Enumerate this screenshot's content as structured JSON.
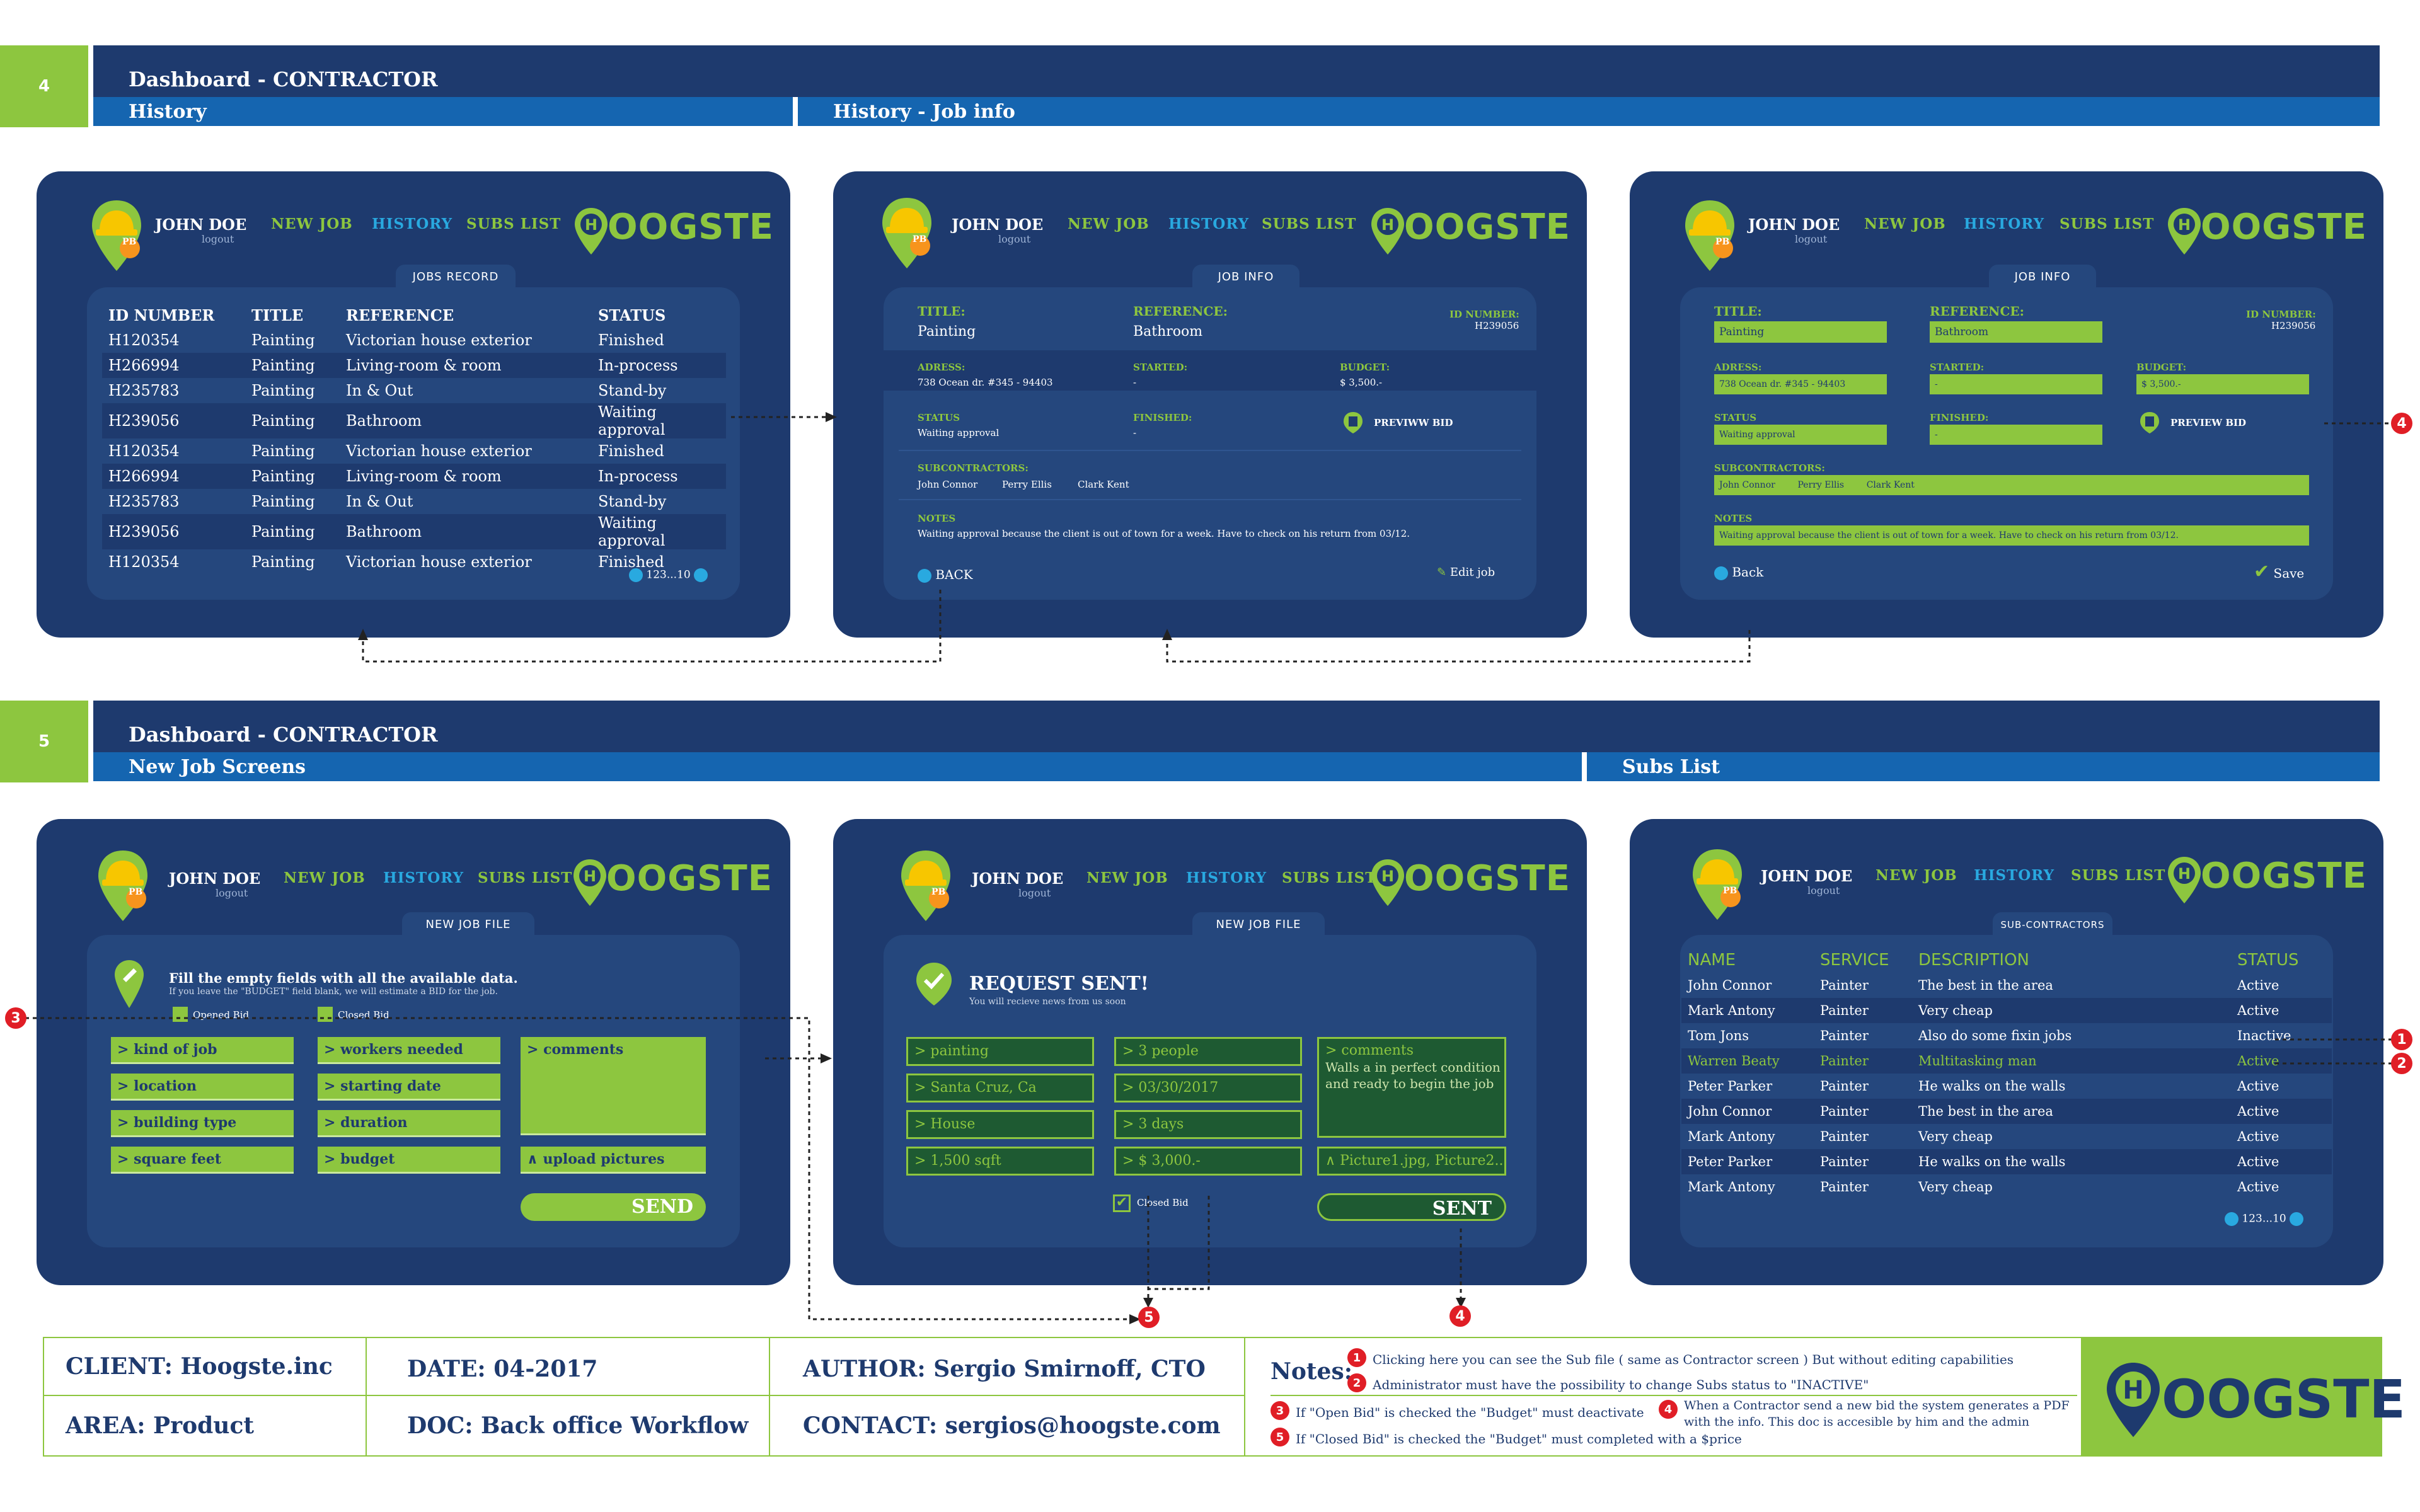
{
  "colors": {
    "navy": "#1e3a6e",
    "blue": "#1565b0",
    "green": "#8dc63f",
    "cyan": "#29a9e0",
    "red": "#e01e26"
  },
  "sec4": {
    "num": "4",
    "title": "Dashboard - CONTRACTOR",
    "left": "History",
    "right": "History - Job info"
  },
  "sec5": {
    "num": "5",
    "title": "Dashboard - CONTRACTOR",
    "left": "New Job Screens",
    "right": "Subs List"
  },
  "header": {
    "user": "JOHN DOE",
    "logout": "logout",
    "badge": "PB",
    "new_job": "NEW JOB",
    "history": "HISTORY",
    "subs_list": "SUBS LIST",
    "brand": "OOGSTE",
    "brand_h": "H"
  },
  "s1": {
    "tab": "JOBS RECORD",
    "cols": [
      "ID NUMBER",
      "TITLE",
      "REFERENCE",
      "STATUS"
    ],
    "rows": [
      [
        "H120354",
        "Painting",
        "Victorian house exterior",
        "Finished"
      ],
      [
        "H266994",
        "Painting",
        "Living-room & room",
        "In-process"
      ],
      [
        "H235783",
        "Painting",
        "In & Out",
        "Stand-by"
      ],
      [
        "H239056",
        "Painting",
        "Bathroom",
        "Waiting approval"
      ],
      [
        "H120354",
        "Painting",
        "Victorian house exterior",
        "Finished"
      ],
      [
        "H266994",
        "Painting",
        "Living-room & room",
        "In-process"
      ],
      [
        "H235783",
        "Painting",
        "In & Out",
        "Stand-by"
      ],
      [
        "H239056",
        "Painting",
        "Bathroom",
        "Waiting approval"
      ],
      [
        "H120354",
        "Painting",
        "Victorian house exterior",
        "Finished"
      ]
    ],
    "pager": "123...10"
  },
  "s2": {
    "tab": "JOB INFO",
    "title_l": "TITLE:",
    "title_v": "Painting",
    "ref_l": "REFERENCE:",
    "ref_v": "Bathroom",
    "id_l": "ID NUMBER:",
    "id_v": "H239056",
    "adress_l": "ADRESS:",
    "adress_v": "738 Ocean dr. #345 - 94403",
    "started_l": "STARTED:",
    "started_v": "-",
    "budget_l": "BUDGET:",
    "budget_v": "$ 3,500.-",
    "status_l": "STATUS",
    "status_v": "Waiting approval",
    "finished_l": "FINISHED:",
    "finished_v": "-",
    "preview": "PREVIWW BID",
    "subs_l": "SUBCONTRACTORS:",
    "subs": [
      "John Connor",
      "Perry Ellis",
      "Clark Kent"
    ],
    "notes_l": "NOTES",
    "notes_v": "Waiting approval because the client is out of town for a week. Have to check on his return from 03/12.",
    "back": "BACK",
    "edit": "Edit job"
  },
  "s3": {
    "tab": "JOB INFO",
    "preview": "PREVIEW BID",
    "back": "Back",
    "save": "Save"
  },
  "s4": {
    "tab": "NEW JOB FILE",
    "instr": "Fill the empty fields with all the available data.",
    "instr2": "If you leave the \"BUDGET\" field blank, we will estimate a BID for the job.",
    "opened": "Opened Bid",
    "closed": "Closed Bid",
    "col1": [
      "> kind of job",
      "> location",
      "> building type",
      "> square feet"
    ],
    "col2": [
      "> workers needed",
      "> starting date",
      "> duration",
      "> budget"
    ],
    "comments": "> comments",
    "upload": "∧ upload pictures",
    "send": "SEND"
  },
  "s5": {
    "tab": "NEW JOB FILE",
    "title": "REQUEST SENT!",
    "sub": "You will recieve news from us soon",
    "col1": [
      "> painting",
      "> Santa Cruz, Ca",
      "> House",
      "> 1,500 sqft"
    ],
    "col2": [
      "> 3 people",
      "> 03/30/2017",
      "> 3 days",
      "> $ 3,000.-"
    ],
    "comments": "> comments",
    "comments_text": "Walls a in perfect condition and ready to begin the job",
    "pics": "∧ Picture1.jpg, Picture2...",
    "closed": "Closed Bid",
    "sent": "SENT"
  },
  "s6": {
    "tab": "SUB-CONTRACTORS",
    "cols": [
      "NAME",
      "SERVICE",
      "DESCRIPTION",
      "STATUS"
    ],
    "rows": [
      [
        "John Connor",
        "Painter",
        "The best in the area",
        "Active"
      ],
      [
        "Mark Antony",
        "Painter",
        "Very cheap",
        "Active"
      ],
      [
        "Tom Jons",
        "Painter",
        "Also do some fixin jobs",
        "Inactive"
      ],
      [
        "Warren Beaty",
        "Painter",
        "Multitasking man",
        "Active"
      ],
      [
        "Peter Parker",
        "Painter",
        "He walks on the walls",
        "Active"
      ],
      [
        "John Connor",
        "Painter",
        "The best in the area",
        "Active"
      ],
      [
        "Mark Antony",
        "Painter",
        "Very cheap",
        "Active"
      ],
      [
        "Peter Parker",
        "Painter",
        "He walks on the walls",
        "Active"
      ],
      [
        "Mark Antony",
        "Painter",
        "Very cheap",
        "Active"
      ]
    ],
    "pager": "123...10"
  },
  "callouts": [
    "1",
    "2",
    "3",
    "4",
    "5"
  ],
  "footer": {
    "client": "CLIENT: Hoogste.inc",
    "area": "AREA: Product",
    "date": "DATE: 04-2017",
    "doc": "DOC: Back office Workflow",
    "author": "AUTHOR: Sergio Smirnoff, CTO",
    "contact": "CONTACT: sergios@hoogste.com",
    "notes_label": "Notes:",
    "n1": "Clicking here you can see the Sub file ( same as Contractor screen ) But without editing capabilities",
    "n2": "Administrator must have the possibility to change Subs status to \"INACTIVE\"",
    "n3": "If \"Open Bid\" is checked the \"Budget\" must deactivate",
    "n4": "When a Contractor send a new bid the system generates a PDF with the info. This doc is accesible by him and the admin",
    "n5": "If \"Closed Bid\" is checked the \"Budget\" must completed with a $price"
  }
}
